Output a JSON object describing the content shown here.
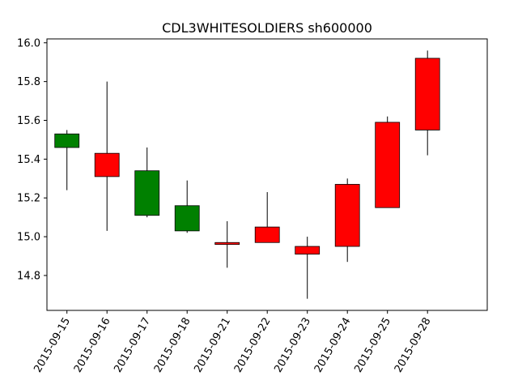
{
  "chart_data": {
    "type": "candlestick",
    "title": "CDL3WHITESOLDIERS sh600000",
    "xlabel": "",
    "ylabel": "",
    "ylim": [
      14.62,
      16.02
    ],
    "yticks": [
      14.8,
      15.0,
      15.2,
      15.4,
      15.6,
      15.8,
      16.0
    ],
    "ytick_labels": [
      "14.8",
      "15.0",
      "15.2",
      "15.4",
      "15.6",
      "15.8",
      "16.0"
    ],
    "grid": false,
    "legend": "none",
    "up_color": "#ff0000",
    "down_color": "#008000",
    "categories": [
      "2015-09-15",
      "2015-09-16",
      "2015-09-17",
      "2015-09-18",
      "2015-09-21",
      "2015-09-22",
      "2015-09-23",
      "2015-09-24",
      "2015-09-25",
      "2015-09-28"
    ],
    "open": [
      15.53,
      15.31,
      15.34,
      15.16,
      14.96,
      14.97,
      14.91,
      14.95,
      15.15,
      15.55
    ],
    "high": [
      15.55,
      15.8,
      15.46,
      15.29,
      15.08,
      15.23,
      15.0,
      15.3,
      15.62,
      15.96
    ],
    "low": [
      15.24,
      15.03,
      15.1,
      15.02,
      14.84,
      14.97,
      14.68,
      14.87,
      15.15,
      15.42
    ],
    "close": [
      15.46,
      15.43,
      15.11,
      15.03,
      14.97,
      15.05,
      14.95,
      15.27,
      15.59,
      15.92
    ]
  }
}
